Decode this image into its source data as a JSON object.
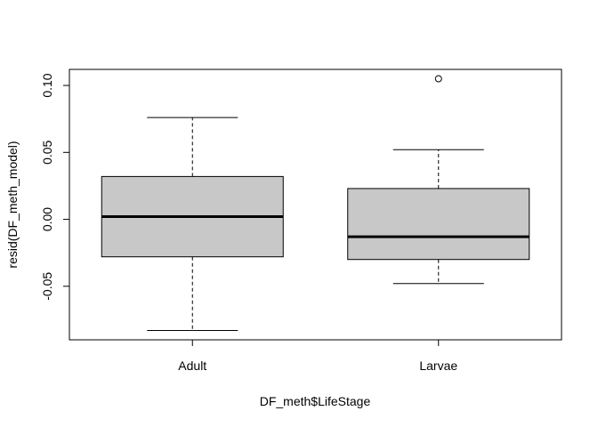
{
  "chart_data": {
    "type": "boxplot",
    "xlabel": "DF_meth$LifeStage",
    "ylabel": "resid(DF_meth_model)",
    "categories": [
      "Adult",
      "Larvae"
    ],
    "ylim": [
      -0.09,
      0.112
    ],
    "yticks": [
      -0.05,
      0.0,
      0.05,
      0.1
    ],
    "ytick_labels": [
      "-0.05",
      "0.00",
      "0.05",
      "0.10"
    ],
    "boxes": [
      {
        "category": "Adult",
        "whisker_low": -0.083,
        "q1": -0.028,
        "median": 0.002,
        "q3": 0.032,
        "whisker_high": 0.076,
        "outliers": []
      },
      {
        "category": "Larvae",
        "whisker_low": -0.048,
        "q1": -0.03,
        "median": -0.013,
        "q3": 0.023,
        "whisker_high": 0.052,
        "outliers": [
          0.105
        ]
      }
    ],
    "box_fill": "#c8c8c8",
    "line_color": "#000000"
  }
}
